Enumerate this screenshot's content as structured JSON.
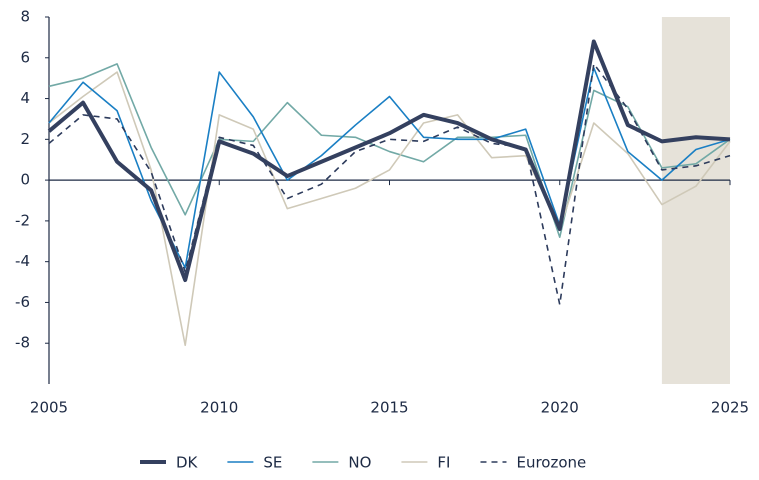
{
  "chart_data": {
    "type": "line",
    "x": [
      2005,
      2006,
      2007,
      2008,
      2009,
      2010,
      2011,
      2012,
      2013,
      2014,
      2015,
      2016,
      2017,
      2018,
      2019,
      2020,
      2021,
      2022,
      2023,
      2024,
      2025
    ],
    "series": [
      {
        "name": "NO",
        "color": "#72a9a6",
        "width": 1.6,
        "dashed": false,
        "values": [
          4.6,
          5.0,
          5.7,
          1.6,
          -1.7,
          2.0,
          1.9,
          3.8,
          2.2,
          2.1,
          1.4,
          0.9,
          2.1,
          2.1,
          2.2,
          -2.8,
          4.4,
          3.6,
          0.6,
          0.8,
          2.0
        ]
      },
      {
        "name": "FI",
        "color": "#cfc9b8",
        "width": 1.6,
        "dashed": false,
        "values": [
          2.8,
          4.1,
          5.3,
          0.5,
          -8.1,
          3.2,
          2.5,
          -1.4,
          -0.9,
          -0.4,
          0.5,
          2.8,
          3.2,
          1.1,
          1.2,
          -2.4,
          2.8,
          1.3,
          -1.2,
          -0.3,
          1.9
        ]
      },
      {
        "name": "SE",
        "color": "#1a7fc4",
        "width": 1.6,
        "dashed": false,
        "values": [
          2.8,
          4.8,
          3.4,
          -1.0,
          -4.3,
          5.3,
          3.1,
          0.0,
          1.2,
          2.7,
          4.1,
          2.1,
          2.0,
          2.0,
          2.5,
          -2.2,
          5.5,
          1.4,
          0.0,
          1.5,
          2.0
        ]
      },
      {
        "name": "Eurozone",
        "color": "#2d3b5c",
        "width": 1.6,
        "dashed": true,
        "values": [
          1.8,
          3.2,
          3.0,
          0.4,
          -4.5,
          2.1,
          1.7,
          -0.9,
          -0.2,
          1.4,
          2.0,
          1.9,
          2.6,
          1.8,
          1.6,
          -6.1,
          5.7,
          3.5,
          0.5,
          0.7,
          1.2
        ]
      },
      {
        "name": "DK",
        "color": "#34405f",
        "width": 4,
        "dashed": false,
        "values": [
          2.4,
          3.8,
          0.9,
          -0.5,
          -4.9,
          1.9,
          1.3,
          0.2,
          0.9,
          1.6,
          2.3,
          3.2,
          2.8,
          2.0,
          1.5,
          -2.4,
          6.8,
          2.7,
          1.9,
          2.1,
          2.0
        ]
      }
    ],
    "legend_order": [
      "DK",
      "SE",
      "NO",
      "FI",
      "Eurozone"
    ],
    "shaded_xrange": [
      2023,
      2025
    ],
    "shade_color": "#e6e2d9",
    "xlim": [
      2005,
      2025
    ],
    "xticks": [
      2005,
      2010,
      2015,
      2020,
      2025
    ],
    "ylim": [
      -10,
      8
    ],
    "yticks": [
      -8,
      -6,
      -4,
      -2,
      0,
      2,
      4,
      6,
      8
    ]
  }
}
